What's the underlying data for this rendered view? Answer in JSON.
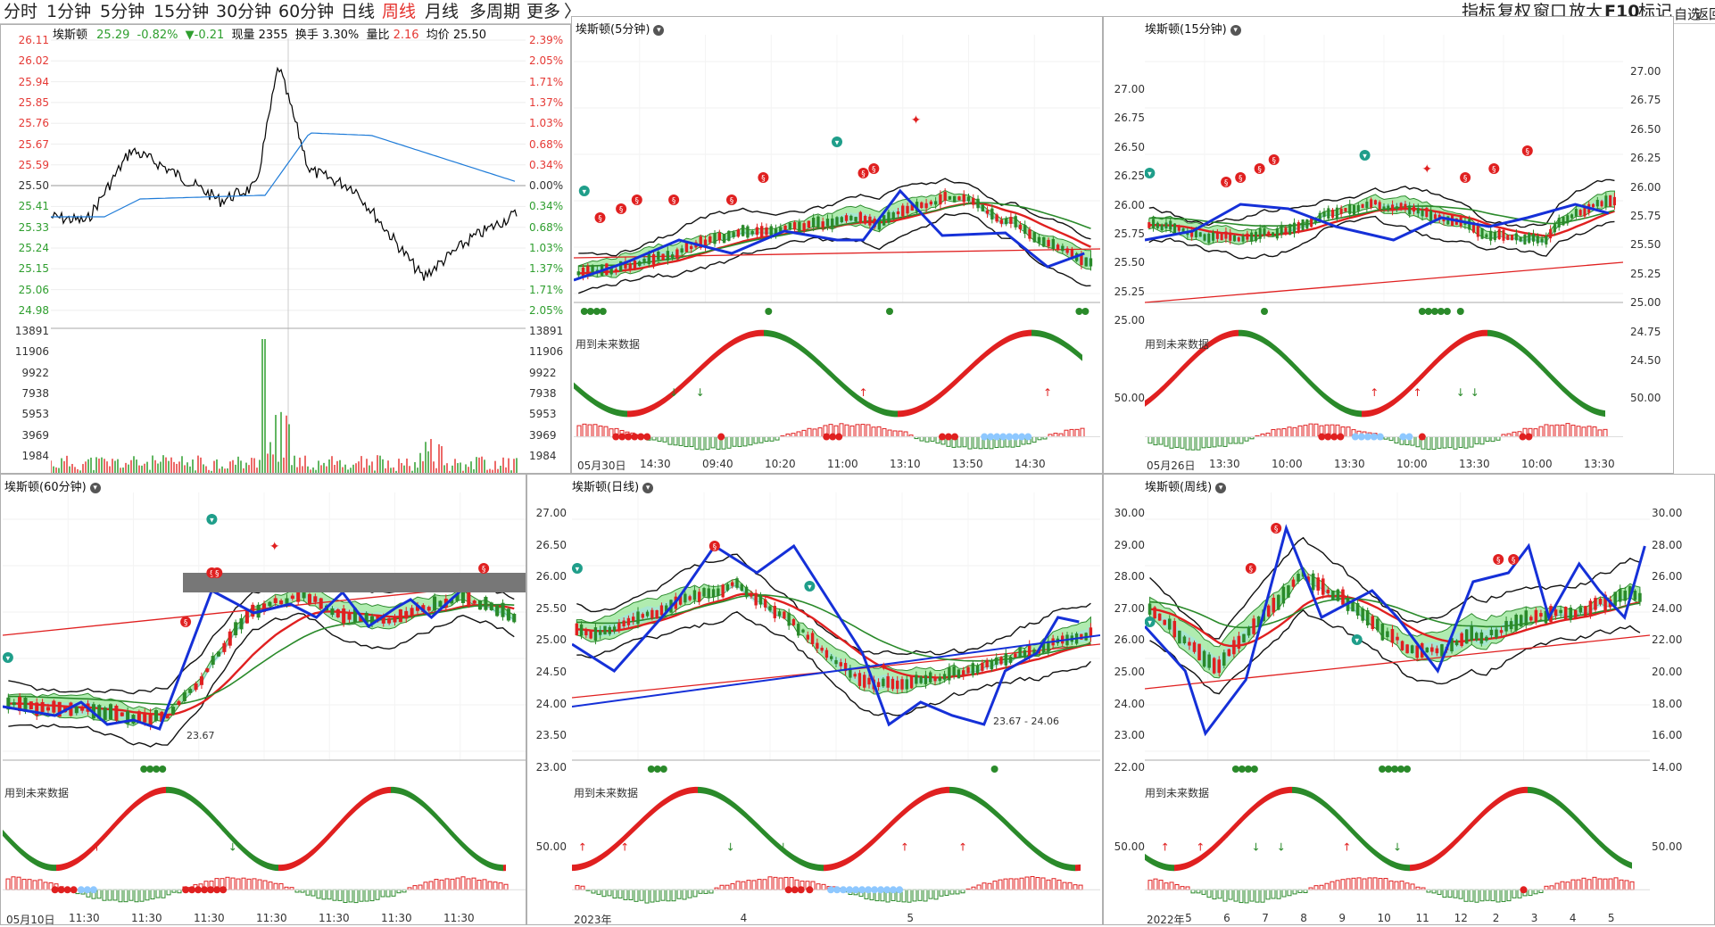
{
  "tabs": [
    "分时",
    "1分钟",
    "5分钟",
    "15分钟",
    "30分钟",
    "60分钟",
    "日线",
    "周线",
    "月线",
    "多周期",
    "更多",
    "〉"
  ],
  "active_tab": "周线",
  "right_tools": [
    "指标",
    "复权",
    "窗口",
    "放大",
    "F10",
    "标记",
    "自选",
    "返回"
  ],
  "intraday": {
    "name": "埃斯顿",
    "price": "25.29",
    "pct": "-0.82%",
    "chg": "▼-0.21",
    "now_vol_label": "现量",
    "now_vol": "2355",
    "turnover_label": "换手",
    "turnover": "3.30%",
    "vol_ratio_label": "量比",
    "vol_ratio": "2.16",
    "avg_label": "均价",
    "avg": "25.50",
    "left_axis": [
      "26.11",
      "26.02",
      "25.94",
      "25.85",
      "25.76",
      "25.67",
      "25.59",
      "25.50",
      "25.41",
      "25.33",
      "25.24",
      "25.15",
      "25.06",
      "24.98"
    ],
    "right_axis": [
      "2.39%",
      "2.05%",
      "1.71%",
      "1.37%",
      "1.03%",
      "0.68%",
      "0.34%",
      "0.00%",
      "0.34%",
      "0.68%",
      "1.03%",
      "1.37%",
      "1.71%",
      "2.05%"
    ],
    "vol_axis": [
      "13891",
      "11906",
      "9922",
      "7938",
      "5953",
      "3969",
      "1984"
    ],
    "colors": {
      "price": "#000000",
      "avg": "#1e7bd8",
      "up": "#e53935",
      "down": "#2e9e2e",
      "pct_up": "#e53935",
      "pct_down": "#2e9e2e"
    }
  },
  "panels": {
    "p5": {
      "title": "埃斯顿(5分钟)",
      "axis": [],
      "note": "用到未来数据",
      "xlabels": [
        "05月30日",
        "14:30",
        "09:40",
        "10:20",
        "11:00",
        "13:10",
        "13:50",
        "14:30"
      ]
    },
    "p15": {
      "title": "埃斯顿(15分钟)",
      "axis": [
        "27.00",
        "26.75",
        "26.50",
        "26.25",
        "26.00",
        "25.75",
        "25.50",
        "25.25",
        "25.00"
      ],
      "note": "用到未来数据",
      "sub_axis": "50.00",
      "xlabels": [
        "05月26日",
        "13:30",
        "10:00",
        "13:30",
        "10:00",
        "13:30",
        "10:00",
        "13:30"
      ]
    },
    "pright": {
      "axis": [
        "27.00",
        "26.75",
        "26.50",
        "26.25",
        "26.00",
        "25.75",
        "25.50",
        "25.25",
        "25.00",
        "24.75",
        "24.50"
      ],
      "sub_axis": "50.00"
    },
    "p60": {
      "title": "埃斯顿(60分钟)",
      "note": "用到未来数据",
      "box_label": "23.67",
      "xlabels": [
        "05月10日",
        "11:30",
        "11:30",
        "11:30",
        "11:30",
        "11:30",
        "11:30",
        "11:30"
      ]
    },
    "pday": {
      "title": "埃斯顿(日线)",
      "axis": [
        "27.00",
        "26.50",
        "26.00",
        "25.50",
        "25.00",
        "24.50",
        "24.00",
        "23.50",
        "23.00"
      ],
      "note": "用到未来数据",
      "range_label": "23.67 - 24.06",
      "sub_axis": "50.00",
      "xlabels": [
        "2023年",
        "4",
        "5"
      ]
    },
    "pweek": {
      "title": "埃斯顿(周线)",
      "axis": [
        "30.00",
        "29.00",
        "28.00",
        "27.00",
        "26.00",
        "25.00",
        "24.00",
        "23.00",
        "22.00"
      ],
      "note": "用到未来数据",
      "sub_axis": "50.00",
      "xlabels": [
        "2022年",
        "5",
        "6",
        "7",
        "8",
        "9",
        "10",
        "11",
        "12",
        "2",
        "3",
        "4",
        "5"
      ]
    },
    "pweekright": {
      "axis": [
        "30.00",
        "28.00",
        "26.00",
        "24.00",
        "22.00",
        "20.00",
        "18.00",
        "16.00",
        "14.00"
      ],
      "sub_axis": "50.00"
    }
  }
}
